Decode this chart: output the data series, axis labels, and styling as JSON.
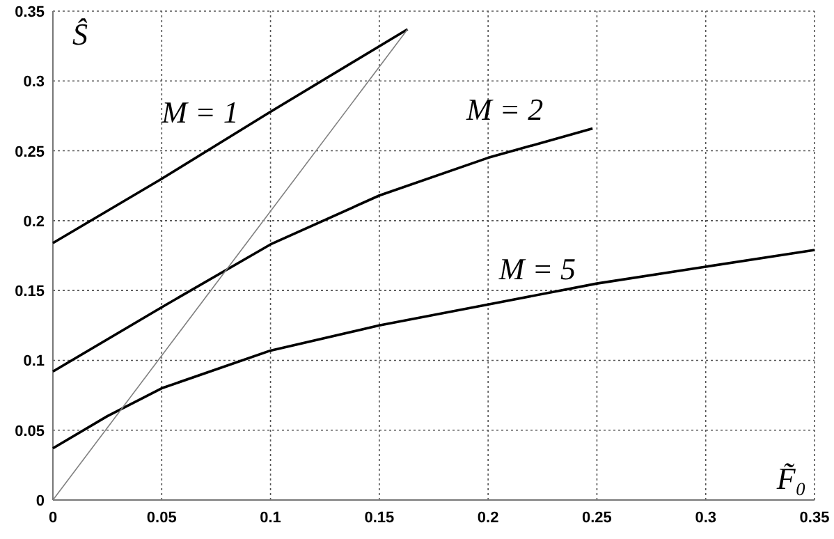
{
  "chart_data": {
    "type": "line",
    "xlabel": "F̃₀",
    "ylabel": "Ŝ",
    "xlim": [
      0,
      0.35
    ],
    "ylim": [
      0,
      0.35
    ],
    "xticks": [
      0,
      0.05,
      0.1,
      0.15,
      0.2,
      0.25,
      0.3,
      0.35
    ],
    "yticks": [
      0,
      0.05,
      0.1,
      0.15,
      0.2,
      0.25,
      0.3,
      0.35
    ],
    "grid": true,
    "line_style": "solid",
    "series": [
      {
        "name": "M = 1",
        "color": "#000000",
        "x": [
          0,
          0.05,
          0.1,
          0.163
        ],
        "values": [
          0.184,
          0.23,
          0.278,
          0.337
        ]
      },
      {
        "name": "M = 2",
        "color": "#000000",
        "x": [
          0,
          0.05,
          0.1,
          0.15,
          0.2,
          0.248
        ],
        "values": [
          0.092,
          0.138,
          0.183,
          0.218,
          0.245,
          0.266
        ]
      },
      {
        "name": "M = 5",
        "color": "#000000",
        "x": [
          0,
          0.025,
          0.05,
          0.1,
          0.15,
          0.2,
          0.25,
          0.3,
          0.35
        ],
        "values": [
          0.037,
          0.06,
          0.08,
          0.107,
          0.125,
          0.14,
          0.155,
          0.167,
          0.179
        ]
      },
      {
        "color": "#808080",
        "x": [
          0,
          0.163
        ],
        "values": [
          0,
          0.337
        ]
      }
    ]
  }
}
